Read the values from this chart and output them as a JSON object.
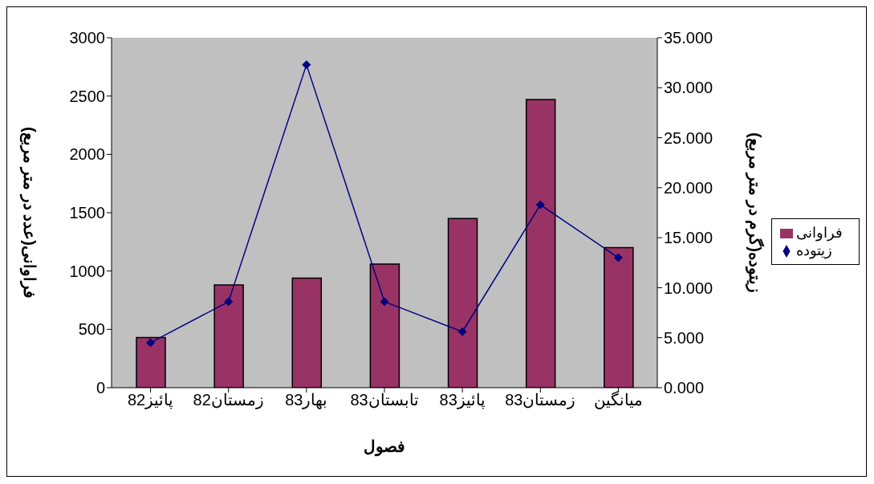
{
  "chart_data": {
    "type": "bar",
    "categories": [
      "پائیز82",
      "زمستان82",
      "بهار83",
      "تابستان83",
      "پائیز83",
      "زمستان83",
      "میانگین"
    ],
    "xlabel": "فصول",
    "ylabel": "فراوانی(عدد در متر مربع)",
    "y2label": "زیتوده(گرم در متر مربع)",
    "series": [
      {
        "name": "فراوانی",
        "color": "#993366",
        "values": [
          430,
          880,
          940,
          1060,
          1450,
          2470,
          1200
        ]
      },
      {
        "name": "زیتوده",
        "type": "line",
        "axis": "y2",
        "color": "#000080",
        "values": [
          4.5,
          8.6,
          32.3,
          8.6,
          5.6,
          18.3,
          13.0
        ]
      }
    ],
    "ylim": [
      0,
      3000
    ],
    "yticks": [
      0,
      500,
      1000,
      1500,
      2000,
      2500,
      3000
    ],
    "y2lim": [
      0,
      35
    ],
    "y2ticks": [
      {
        "value": 0,
        "label": "0.000"
      },
      {
        "value": 5,
        "label": "5.000"
      },
      {
        "value": 10,
        "label": "10.000"
      },
      {
        "value": 15,
        "label": "15.000"
      },
      {
        "value": 20,
        "label": "20.000"
      },
      {
        "value": 25,
        "label": "25.000"
      },
      {
        "value": 30,
        "label": "30.000"
      },
      {
        "value": 35,
        "label": "35.000"
      }
    ],
    "grid": false,
    "legend": "right",
    "marker": "diamond",
    "line_style": "solid"
  }
}
